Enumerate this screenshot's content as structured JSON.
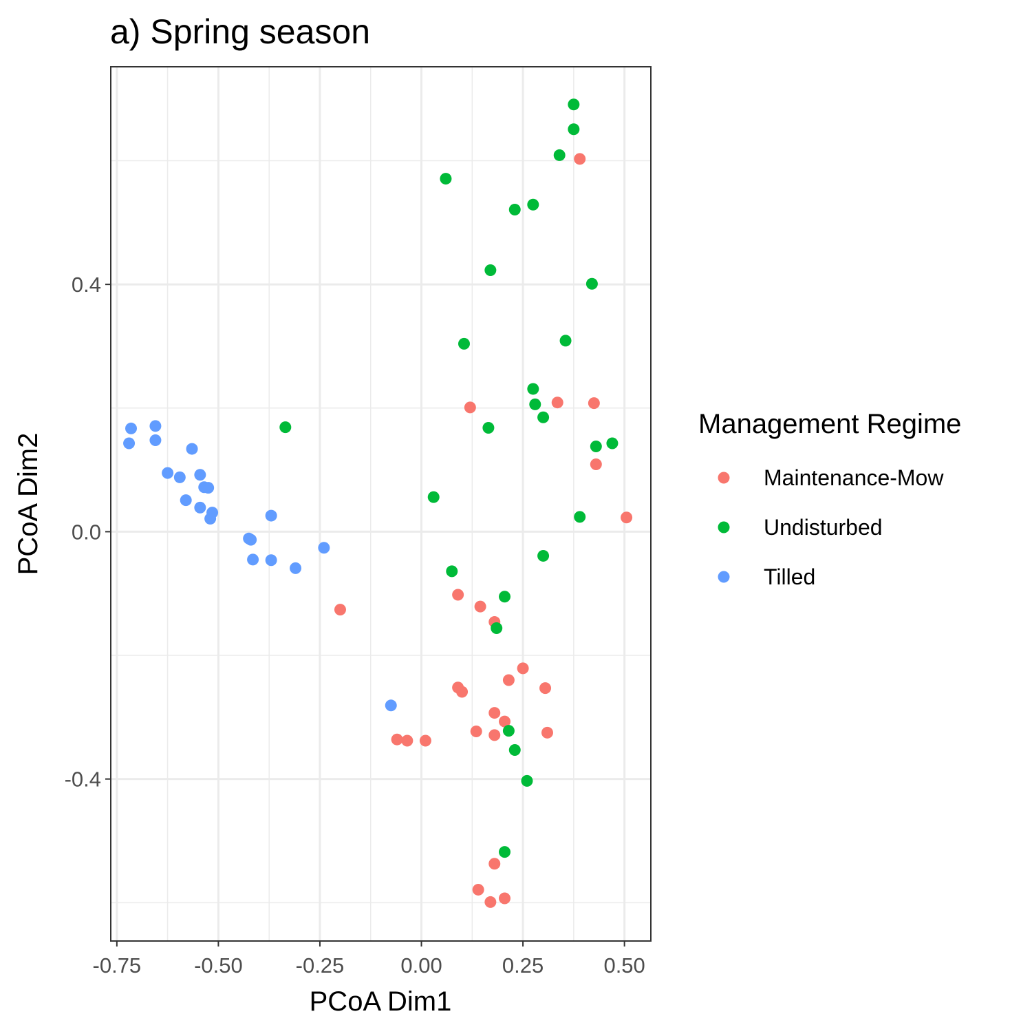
{
  "chart_data": {
    "type": "scatter",
    "title": "a) Spring season",
    "xlabel": "PCoA Dim1",
    "ylabel": "PCoA Dim2",
    "xlim": [
      -0.765,
      0.565
    ],
    "ylim": [
      -0.662,
      0.752
    ],
    "x_ticks": [
      -0.75,
      -0.5,
      -0.25,
      0.0,
      0.25,
      0.5
    ],
    "x_tick_labels": [
      "-0.75",
      "-0.50",
      "-0.25",
      "0.00",
      "0.25",
      "0.50"
    ],
    "y_ticks": [
      -0.4,
      0.0,
      0.4
    ],
    "y_tick_labels": [
      "-0.4",
      "0.0",
      "0.4"
    ],
    "x_minor_ticks": [
      -0.625,
      -0.375,
      -0.125,
      0.125,
      0.375
    ],
    "y_minor_ticks": [
      -0.6,
      -0.2,
      0.2,
      0.6
    ],
    "grid": true,
    "legend": {
      "title": "Management Regime",
      "position": "right"
    },
    "series": [
      {
        "name": "Maintenance-Mow",
        "color": "#F8766D",
        "points": [
          [
            0.39,
            0.603
          ],
          [
            0.12,
            0.201
          ],
          [
            0.335,
            0.209
          ],
          [
            0.425,
            0.208
          ],
          [
            0.43,
            0.109
          ],
          [
            0.505,
            0.023
          ],
          [
            -0.2,
            -0.126
          ],
          [
            0.09,
            -0.102
          ],
          [
            0.145,
            -0.121
          ],
          [
            0.18,
            -0.146
          ],
          [
            0.25,
            -0.221
          ],
          [
            0.215,
            -0.24
          ],
          [
            0.09,
            -0.252
          ],
          [
            0.1,
            -0.259
          ],
          [
            0.305,
            -0.253
          ],
          [
            0.18,
            -0.293
          ],
          [
            0.205,
            -0.307
          ],
          [
            0.135,
            -0.323
          ],
          [
            0.18,
            -0.329
          ],
          [
            0.31,
            -0.325
          ],
          [
            -0.06,
            -0.336
          ],
          [
            -0.035,
            -0.338
          ],
          [
            0.01,
            -0.338
          ],
          [
            0.18,
            -0.537
          ],
          [
            0.14,
            -0.579
          ],
          [
            0.17,
            -0.599
          ],
          [
            0.205,
            -0.593
          ]
        ]
      },
      {
        "name": "Undisturbed",
        "color": "#00BA38",
        "points": [
          [
            0.375,
            0.691
          ],
          [
            0.375,
            0.651
          ],
          [
            0.34,
            0.609
          ],
          [
            0.06,
            0.571
          ],
          [
            0.275,
            0.529
          ],
          [
            0.23,
            0.521
          ],
          [
            0.17,
            0.423
          ],
          [
            0.42,
            0.401
          ],
          [
            0.105,
            0.304
          ],
          [
            0.355,
            0.309
          ],
          [
            0.275,
            0.231
          ],
          [
            0.28,
            0.206
          ],
          [
            0.3,
            0.185
          ],
          [
            0.165,
            0.168
          ],
          [
            -0.335,
            0.169
          ],
          [
            0.43,
            0.138
          ],
          [
            0.47,
            0.143
          ],
          [
            0.03,
            0.056
          ],
          [
            0.39,
            0.024
          ],
          [
            0.3,
            -0.039
          ],
          [
            0.075,
            -0.064
          ],
          [
            0.205,
            -0.105
          ],
          [
            0.185,
            -0.156
          ],
          [
            0.215,
            -0.322
          ],
          [
            0.23,
            -0.353
          ],
          [
            0.26,
            -0.403
          ],
          [
            0.205,
            -0.518
          ]
        ]
      },
      {
        "name": "Tilled",
        "color": "#619CFF",
        "points": [
          [
            -0.715,
            0.167
          ],
          [
            -0.655,
            0.171
          ],
          [
            -0.72,
            0.143
          ],
          [
            -0.655,
            0.148
          ],
          [
            -0.565,
            0.134
          ],
          [
            -0.625,
            0.095
          ],
          [
            -0.595,
            0.088
          ],
          [
            -0.545,
            0.092
          ],
          [
            -0.535,
            0.072
          ],
          [
            -0.525,
            0.071
          ],
          [
            -0.58,
            0.051
          ],
          [
            -0.545,
            0.039
          ],
          [
            -0.515,
            0.031
          ],
          [
            -0.52,
            0.021
          ],
          [
            -0.37,
            0.026
          ],
          [
            -0.425,
            -0.011
          ],
          [
            -0.42,
            -0.013
          ],
          [
            -0.415,
            -0.045
          ],
          [
            -0.37,
            -0.046
          ],
          [
            -0.31,
            -0.059
          ],
          [
            -0.24,
            -0.026
          ],
          [
            -0.075,
            -0.281
          ]
        ]
      }
    ]
  }
}
